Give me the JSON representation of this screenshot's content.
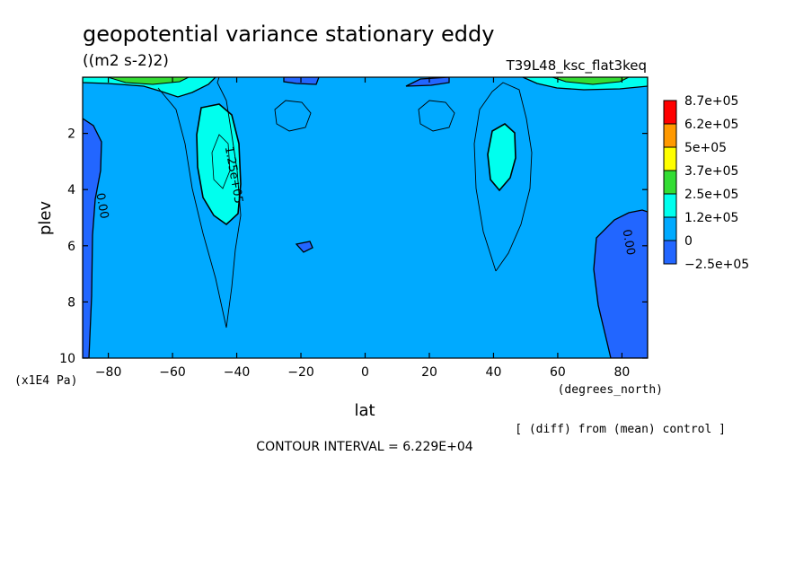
{
  "chart_data": {
    "type": "contour",
    "title": "geopotential variance stationary eddy",
    "units": "((m2 s-2)2)",
    "experiment": "T39L48_ksc_flat3keq",
    "xlabel": "lat",
    "xunits": "(degrees_north)",
    "ylabel": "plev",
    "yunits": "(x1E4 Pa)",
    "xlim": [
      -88,
      88
    ],
    "ylim": [
      0,
      10
    ],
    "y_inverted": true,
    "xticks": [
      -80,
      -60,
      -40,
      -20,
      0,
      20,
      40,
      60,
      80
    ],
    "xtick_labels": [
      "-80",
      "-60",
      "-40",
      "-20",
      "0",
      "20",
      "40",
      "60",
      "80"
    ],
    "yticks": [
      2,
      4,
      6,
      8,
      10
    ],
    "ytick_labels": [
      "2",
      "4",
      "6",
      "8",
      "10"
    ],
    "colorbar": {
      "labels": [
        "8.7e+05",
        "6.2e+05",
        "5e+05",
        "3.7e+05",
        "2.5e+05",
        "1.2e+05",
        "0",
        "-2.5e+05"
      ],
      "colors": [
        "#ff0000",
        "#ff9900",
        "#ffff00",
        "#33dd33",
        "#00ffee",
        "#00aaff",
        "#2266ff"
      ]
    },
    "contour_labels": [
      {
        "text": "0.00",
        "lat": -83,
        "plev": 4.6
      },
      {
        "text": "1.25e+05",
        "lat": -42,
        "plev": 3.5
      },
      {
        "text": "0.00",
        "lat": 81,
        "plev": 5.9
      }
    ],
    "note": "[ (diff) from (mean) control ]",
    "contour_interval_text": "CONTOUR INTERVAL = 6.229E+04"
  }
}
